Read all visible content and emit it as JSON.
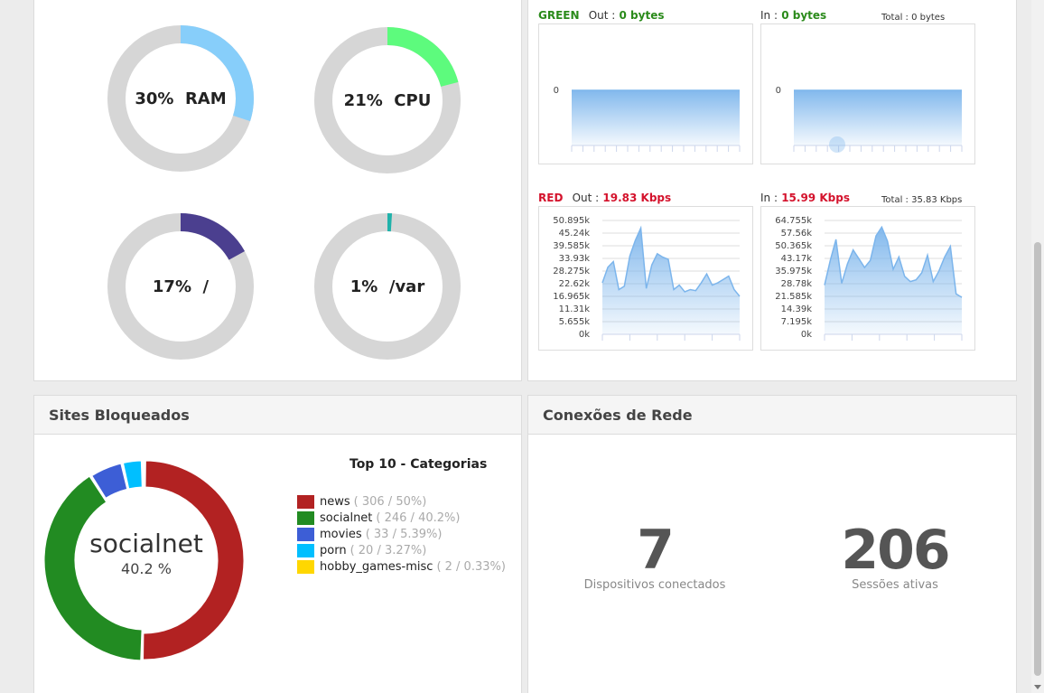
{
  "gauges": [
    {
      "name": "ram",
      "percent": 30,
      "label": "30%  RAM",
      "color": "#87cefa"
    },
    {
      "name": "cpu",
      "percent": 21,
      "label": "21%  CPU",
      "color": "#5dfb7d"
    },
    {
      "name": "root",
      "percent": 17,
      "label": "17%  /",
      "color": "#4b3f8f"
    },
    {
      "name": "var",
      "percent": 1,
      "label": "1%  /var",
      "color": "#20b2aa"
    }
  ],
  "network": {
    "green": {
      "name": "GREEN",
      "out_label": "Out :",
      "out_value": "0 bytes",
      "in_label": "In :",
      "in_value": "0 bytes",
      "total": "Total : 0 bytes",
      "zero_label": "0"
    },
    "red": {
      "name": "RED",
      "out_label": "Out :",
      "out_value": "19.83 Kbps",
      "in_label": "In :",
      "in_value": "15.99 Kbps",
      "total": "Total : 35.83 Kbps"
    }
  },
  "chart_data": [
    {
      "type": "area",
      "name": "green-out",
      "x": [
        0,
        1,
        2,
        3,
        4,
        5,
        6,
        7,
        8,
        9,
        10,
        11,
        12,
        13,
        14,
        15,
        16,
        17,
        18,
        19,
        20,
        21,
        22,
        23,
        24,
        25,
        26,
        27,
        28,
        29
      ],
      "y": [
        0,
        0,
        0,
        0,
        0,
        0,
        0,
        0,
        0,
        0,
        0,
        0,
        0,
        0,
        0,
        0,
        0,
        0,
        0,
        0,
        0,
        0,
        0,
        0,
        0,
        0,
        0,
        0,
        0,
        0
      ],
      "yticks": [
        "0"
      ]
    },
    {
      "type": "area",
      "name": "green-in",
      "x": [
        0,
        1,
        2,
        3,
        4,
        5,
        6,
        7,
        8,
        9,
        10,
        11,
        12,
        13,
        14,
        15,
        16,
        17,
        18,
        19,
        20,
        21,
        22,
        23,
        24,
        25,
        26,
        27,
        28,
        29
      ],
      "y": [
        0,
        0,
        0,
        0,
        0,
        0,
        0,
        0,
        0,
        0,
        0,
        0,
        0,
        0,
        0,
        0,
        0,
        0,
        0,
        0,
        0,
        0,
        0,
        0,
        0,
        0,
        0,
        0,
        0,
        0
      ],
      "yticks": [
        "0"
      ]
    },
    {
      "type": "area",
      "name": "red-out",
      "yticks": [
        "50.895k",
        "45.24k",
        "39.585k",
        "33.93k",
        "28.275k",
        "22.62k",
        "16.965k",
        "11.31k",
        "5.655k",
        "0k"
      ],
      "ylim": [
        0,
        50895
      ],
      "y": [
        23000,
        30000,
        32500,
        20000,
        21500,
        35000,
        42000,
        47500,
        20500,
        31000,
        36000,
        34500,
        33500,
        20000,
        22000,
        19000,
        20000,
        19500,
        23000,
        27000,
        22000,
        23000,
        24500,
        26000,
        20000,
        17000
      ]
    },
    {
      "type": "area",
      "name": "red-in",
      "yticks": [
        "64.755k",
        "57.56k",
        "50.365k",
        "43.17k",
        "35.975k",
        "28.78k",
        "21.585k",
        "14.39k",
        "7.195k",
        "0k"
      ],
      "ylim": [
        0,
        64755
      ],
      "y": [
        28000,
        42000,
        54000,
        29000,
        40000,
        48000,
        43000,
        38000,
        42000,
        56000,
        61000,
        53000,
        37000,
        44000,
        33000,
        30000,
        31000,
        35000,
        45000,
        30000,
        36000,
        44000,
        50000,
        23000,
        21000
      ]
    },
    {
      "type": "pie",
      "name": "sites-bloqueados",
      "title": "Top 10 - Categorias",
      "center_label": "socialnet",
      "center_value": "40.2 %",
      "slices": [
        {
          "name": "news",
          "value": 306,
          "percent": 50,
          "detail": "( 306 / 50%)",
          "color": "#b22222"
        },
        {
          "name": "socialnet",
          "value": 246,
          "percent": 40.2,
          "detail": "( 246 / 40.2%)",
          "color": "#228b22"
        },
        {
          "name": "movies",
          "value": 33,
          "percent": 5.39,
          "detail": "( 33 / 5.39%)",
          "color": "#3d5ed6"
        },
        {
          "name": "porn",
          "value": 20,
          "percent": 3.27,
          "detail": "( 20 / 3.27%)",
          "color": "#00bfff"
        },
        {
          "name": "hobby_games-misc",
          "value": 2,
          "percent": 0.33,
          "detail": "( 2 / 0.33%)",
          "color": "#ffd700"
        }
      ]
    }
  ],
  "sites": {
    "header": "Sites Bloqueados"
  },
  "connections": {
    "header": "Conexões de Rede",
    "devices_value": "7",
    "devices_label": "Dispositivos conectados",
    "sessions_value": "206",
    "sessions_label": "Sessões ativas"
  }
}
